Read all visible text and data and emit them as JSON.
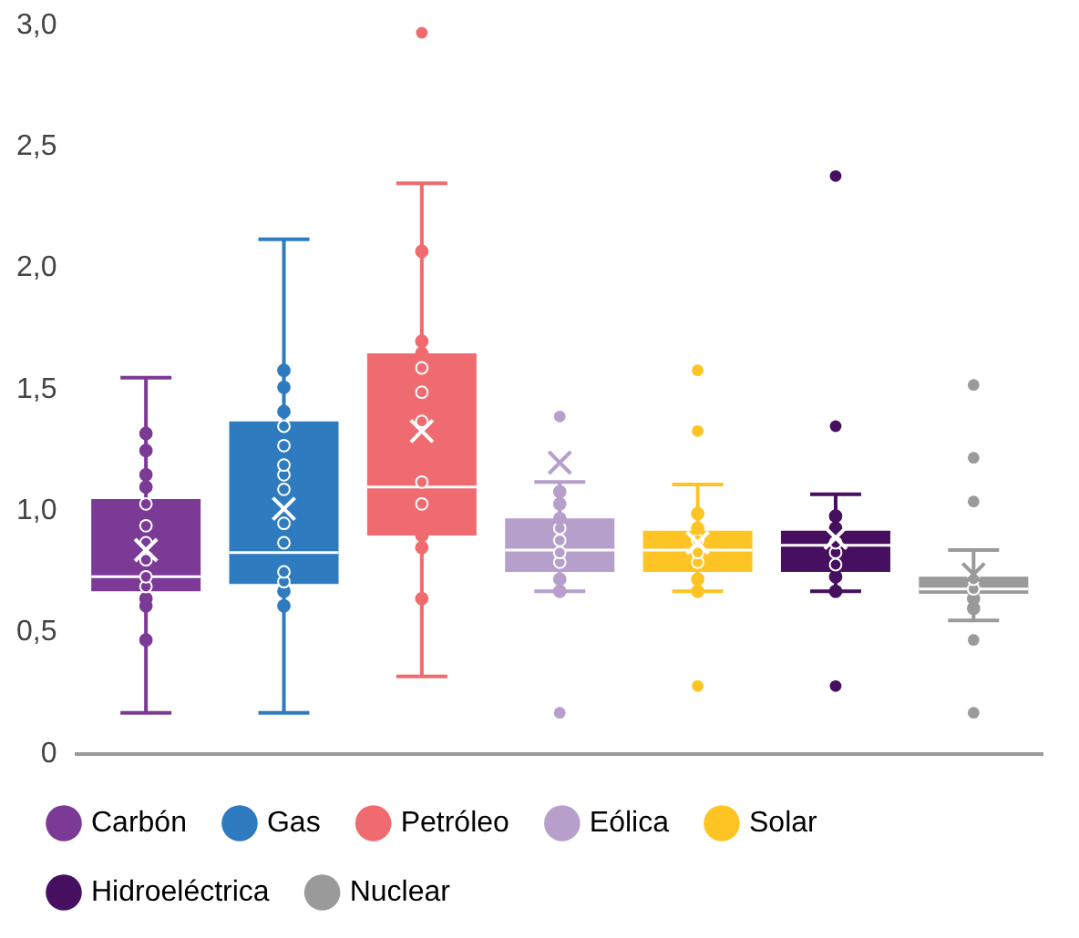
{
  "chart_data": {
    "type": "box",
    "categories": [
      null,
      null,
      null,
      null,
      null,
      null,
      null
    ],
    "series": [
      {
        "type": "box",
        "name": "Carbón",
        "color": "#7b3a96",
        "boxes": [
          {
            "low": 0.17,
            "q1": 0.67,
            "median": 0.73,
            "q3": 1.05,
            "high": 1.55,
            "mean": 0.84
          },
          null,
          null,
          null,
          null,
          null,
          null
        ]
      },
      {
        "type": "box",
        "name": "Gas",
        "color": "#2e7bbf",
        "boxes": [
          null,
          {
            "low": 0.17,
            "q1": 0.7,
            "median": 0.83,
            "q3": 1.37,
            "high": 2.12,
            "mean": 1.01
          },
          null,
          null,
          null,
          null,
          null
        ]
      },
      {
        "type": "box",
        "name": "Petróleo",
        "color": "#f06b6f",
        "boxes": [
          null,
          null,
          {
            "low": 0.32,
            "q1": 0.9,
            "median": 1.1,
            "q3": 1.65,
            "high": 2.35,
            "mean": 1.33,
            "outliers": [
              2.97
            ]
          },
          null,
          null,
          null,
          null
        ]
      },
      {
        "type": "box",
        "name": "Eólica",
        "color": "#b79fcc",
        "boxes": [
          null,
          null,
          null,
          {
            "low": 0.67,
            "q1": 0.75,
            "median": 0.84,
            "q3": 0.97,
            "high": 1.12,
            "mean": 1.2,
            "outliers": [
              1.39,
              0.17
            ]
          },
          null,
          null,
          null
        ]
      },
      {
        "type": "box",
        "name": "Solar",
        "color": "#fec423",
        "boxes": [
          null,
          null,
          null,
          null,
          {
            "low": 0.67,
            "q1": 0.75,
            "median": 0.84,
            "q3": 0.92,
            "high": 1.11,
            "mean": 0.87,
            "outliers": [
              1.58,
              1.33,
              0.28
            ]
          },
          null,
          null
        ]
      },
      {
        "type": "box",
        "name": "Hidroeléctrica",
        "color": "#470f5f",
        "boxes": [
          null,
          null,
          null,
          null,
          null,
          {
            "low": 0.67,
            "q1": 0.75,
            "median": 0.86,
            "q3": 0.92,
            "high": 1.07,
            "mean": 0.89,
            "outliers": [
              2.38,
              1.35,
              0.28
            ]
          },
          null
        ]
      },
      {
        "type": "box",
        "name": "Nuclear",
        "color": "#9a9a9a",
        "boxes": [
          null,
          null,
          null,
          null,
          null,
          null,
          {
            "low": 0.55,
            "q1": 0.66,
            "median": 0.68,
            "q3": 0.73,
            "high": 0.84,
            "mean": 0.74,
            "outliers": [
              1.52,
              1.22,
              1.04,
              0.47,
              0.17
            ]
          }
        ]
      },
      {
        "type": "scatter",
        "colors": [
          "#7b3a96",
          "#2e7bbf",
          "#f06b6f",
          "#b79fcc",
          "#fec423",
          "#470f5f",
          "#9a9a9a"
        ],
        "values": [
          1.32,
          1.58,
          2.07,
          1.08,
          0.99,
          0.98,
          0.72
        ]
      },
      {
        "type": "scatter",
        "colors": [
          "#7b3a96",
          "#2e7bbf",
          "#f06b6f",
          "#b79fcc",
          "#fec423",
          "#470f5f",
          "#9a9a9a"
        ],
        "values": [
          1.25,
          1.51,
          1.7,
          1.03,
          0.93,
          0.93,
          0.68
        ]
      },
      {
        "type": "scatter",
        "colors": [
          "#7b3a96",
          "#2e7bbf",
          "#f06b6f",
          "#b79fcc",
          "#fec423",
          "#470f5f",
          "#9a9a9a"
        ],
        "values": [
          1.15,
          1.41,
          1.65,
          0.97,
          0.88,
          0.87,
          0.64
        ]
      },
      {
        "type": "scatter",
        "colors": [
          "#7b3a96",
          "#2e7bbf",
          "#f06b6f",
          "#b79fcc",
          "#fec423",
          "#470f5f",
          "#9a9a9a"
        ],
        "values": [
          1.1,
          1.35,
          1.59,
          0.93,
          0.83,
          0.83,
          0.6
        ]
      },
      {
        "type": "scatter",
        "colors": [
          "#7b3a96",
          "#2e7bbf",
          "#f06b6f",
          "#b79fcc",
          "#fec423",
          "#470f5f",
          null
        ],
        "values": [
          1.03,
          1.27,
          1.49,
          0.88,
          0.79,
          0.78,
          null
        ]
      },
      {
        "type": "scatter",
        "colors": [
          "#7b3a96",
          "#2e7bbf",
          "#f06b6f",
          "#b79fcc",
          "#fec423",
          "#470f5f",
          null
        ],
        "values": [
          0.94,
          1.19,
          1.37,
          0.83,
          0.72,
          0.73,
          null
        ]
      },
      {
        "type": "scatter",
        "colors": [
          "#7b3a96",
          "#2e7bbf",
          "#f06b6f",
          "#b79fcc",
          "#fec423",
          "#470f5f",
          null
        ],
        "values": [
          0.87,
          1.15,
          1.12,
          0.79,
          0.67,
          0.67,
          null
        ]
      },
      {
        "type": "scatter",
        "colors": [
          "#7b3a96",
          "#2e7bbf",
          "#f06b6f",
          "#b79fcc",
          null,
          null,
          null
        ],
        "values": [
          0.8,
          1.09,
          1.03,
          0.72,
          null,
          null,
          null
        ]
      },
      {
        "type": "scatter",
        "colors": [
          "#7b3a96",
          "#2e7bbf",
          "#f06b6f",
          "#b79fcc",
          null,
          null,
          null
        ],
        "values": [
          0.73,
          0.95,
          0.9,
          0.67,
          null,
          null,
          null
        ]
      },
      {
        "type": "scatter",
        "colors": [
          "#7b3a96",
          "#2e7bbf",
          "#f06b6f",
          null,
          null,
          null,
          null
        ],
        "values": [
          0.69,
          0.87,
          0.85,
          null,
          null,
          null,
          null
        ]
      },
      {
        "type": "scatter",
        "colors": [
          "#7b3a96",
          "#2e7bbf",
          "#f06b6f",
          null,
          null,
          null,
          null
        ],
        "values": [
          0.64,
          0.75,
          0.64,
          null,
          null,
          null,
          null
        ]
      },
      {
        "type": "scatter",
        "colors": [
          "#7b3a96",
          "#2e7bbf",
          null,
          null,
          null,
          null,
          null
        ],
        "values": [
          0.61,
          0.71,
          null,
          null,
          null,
          null,
          null
        ]
      },
      {
        "type": "scatter",
        "colors": [
          "#7b3a96",
          "#2e7bbf",
          null,
          null,
          null,
          null,
          null
        ],
        "values": [
          0.47,
          0.67,
          null,
          null,
          null,
          null,
          null
        ]
      },
      {
        "type": "scatter",
        "colors": [
          null,
          "#2e7bbf",
          null,
          null,
          null,
          null,
          null
        ],
        "values": [
          null,
          0.61,
          null,
          null,
          null,
          null,
          null
        ]
      }
    ],
    "ylim": [
      0,
      3
    ],
    "yticks": [
      {
        "value": 0,
        "label": "0"
      },
      {
        "value": 0.5,
        "label": "0,5"
      },
      {
        "value": 1,
        "label": "1,0"
      },
      {
        "value": 1.5,
        "label": "1,5"
      },
      {
        "value": 2,
        "label": "2,0"
      },
      {
        "value": 2.5,
        "label": "2,5"
      },
      {
        "value": 3,
        "label": "3,0"
      }
    ],
    "tick_labels": "y",
    "legend": "bottom",
    "marker": "circle"
  }
}
